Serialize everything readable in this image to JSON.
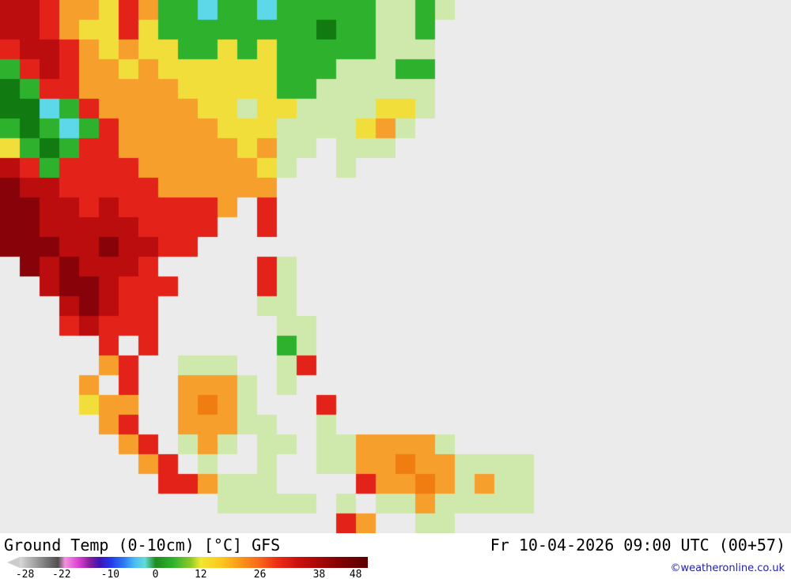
{
  "header": {
    "title": "Ground Temp (0-10cm) [°C] GFS",
    "datetime": "Fr 10-04-2026 09:00 UTC (00+57)"
  },
  "footer": {
    "copyright": "©weatheronline.co.uk",
    "copyright_color": "#2222aa"
  },
  "scale": {
    "unit": "°C",
    "arrow_color": "#cccccc",
    "labels": [
      {
        "text": "-28",
        "pos": 1.5
      },
      {
        "text": "-22",
        "pos": 12
      },
      {
        "text": "-10",
        "pos": 26
      },
      {
        "text": "0",
        "pos": 39
      },
      {
        "text": "12",
        "pos": 52
      },
      {
        "text": "26",
        "pos": 69
      },
      {
        "text": "38",
        "pos": 86
      },
      {
        "text": "48",
        "pos": 96.5
      }
    ],
    "gradient_stops": [
      {
        "color": "#d9d9d9",
        "pos": 0
      },
      {
        "color": "#8c8c8c",
        "pos": 6
      },
      {
        "color": "#4f4f4f",
        "pos": 11
      },
      {
        "color": "#f293e0",
        "pos": 13
      },
      {
        "color": "#d93fd0",
        "pos": 17
      },
      {
        "color": "#8c1f9e",
        "pos": 20
      },
      {
        "color": "#3c14b5",
        "pos": 23
      },
      {
        "color": "#2336e8",
        "pos": 26
      },
      {
        "color": "#2f7bf5",
        "pos": 30
      },
      {
        "color": "#49bdf2",
        "pos": 33
      },
      {
        "color": "#62dcd8",
        "pos": 36
      },
      {
        "color": "#1e8c1e",
        "pos": 39
      },
      {
        "color": "#2eb22e",
        "pos": 44
      },
      {
        "color": "#8cc926",
        "pos": 49
      },
      {
        "color": "#f0e832",
        "pos": 52
      },
      {
        "color": "#fcc61e",
        "pos": 58
      },
      {
        "color": "#f99b19",
        "pos": 63
      },
      {
        "color": "#f9661a",
        "pos": 69
      },
      {
        "color": "#ed2d15",
        "pos": 74
      },
      {
        "color": "#cc0f0f",
        "pos": 80
      },
      {
        "color": "#a80606",
        "pos": 86
      },
      {
        "color": "#820202",
        "pos": 92
      },
      {
        "color": "#5c0000",
        "pos": 100
      }
    ]
  },
  "map": {
    "ocean_color": "#ebebeb",
    "cell_size": 25,
    "palette": {
      ".": "#ebebeb",
      "l": "#cfe9ad",
      "g": "#2eb22e",
      "G": "#117a11",
      "c": "#5cd8e8",
      "y": "#f2de3a",
      "o": "#f79f2c",
      "O": "#ef7d10",
      "r": "#e3231a",
      "R": "#bb0d0d",
      "m": "#870309"
    },
    "grid": [
      "RRrooyroggcggcgggggllgl",
      "RRroyyryggggggggGggllg",
      "rRRroyoyyggygyggggglll",
      "grRrooyoyyyyyyggglllgg",
      "Ggrroooooyyyyyggllllll",
      "GGcgroooooyylyyllllyyl",
      "gGgcgroooooyyyllllyol",
      "ygGgrrooooooyoll.lll",
      "Rrgrrrrooooooyl..l",
      "mRRrrrrroooooo",
      "mmRRrRrrrrro.r",
      "mmRRRRRrrrr..r",
      "mmmRRmRRrr",
      ".mRmRRRr.....rl",
      "..RmmRrrr....rl",
      "...RmRrr.....ll",
      "...rRrrr......ll",
      ".....r.r......gl",
      ".....or..lll..lr",
      "....o.r..oool.l",
      "....yoo..oOol...r",
      ".....or..oooll..l",
      "......or.lol.ll.llooool",
      ".......or.l..l..llooOoollll",
      "........rrolll....rooOololl",
      "...........lllll.l.llolllll",
      ".................ro..ll"
    ]
  }
}
